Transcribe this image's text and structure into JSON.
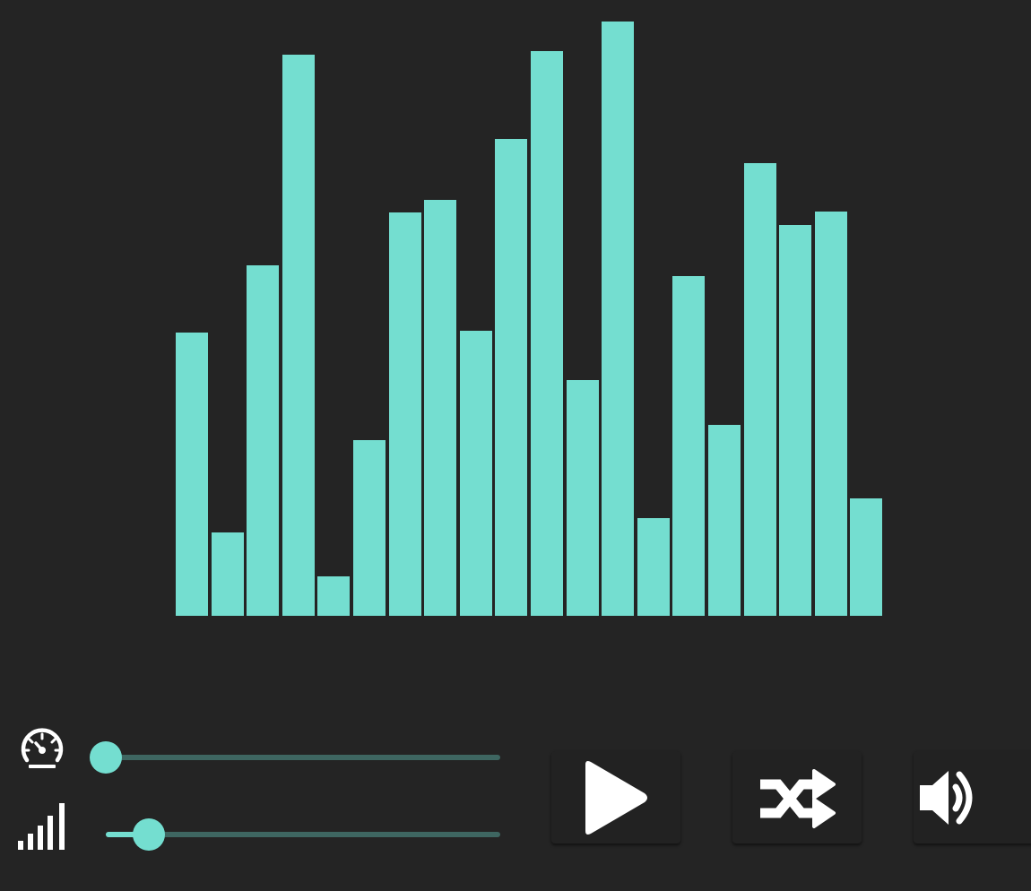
{
  "colors": {
    "background": "#242424",
    "bar": "#74ded0",
    "track": "#3e6661",
    "button_bg": "#222222",
    "icon": "#ffffff"
  },
  "visualizer": {
    "bar_levels": [
      0.477,
      0.141,
      0.59,
      0.944,
      0.066,
      0.295,
      0.678,
      0.7,
      0.48,
      0.803,
      0.95,
      0.396,
      1.0,
      0.164,
      0.572,
      0.321,
      0.762,
      0.658,
      0.68,
      0.197
    ]
  },
  "controls": {
    "speed_slider": {
      "icon": "speedometer-icon",
      "value": 0.0
    },
    "size_slider": {
      "icon": "signal-bars-icon",
      "value": 0.11
    },
    "play_button": {
      "icon": "play-icon"
    },
    "shuffle_button": {
      "icon": "shuffle-icon"
    },
    "sound_button": {
      "icon": "volume-icon"
    }
  }
}
